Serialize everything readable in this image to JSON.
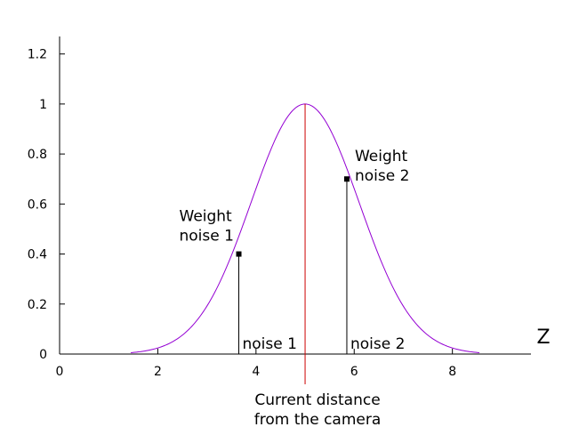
{
  "chart_data": {
    "type": "line",
    "xlim": [
      0,
      9.6
    ],
    "ylim": [
      0,
      1.27
    ],
    "xticks": [
      0,
      2,
      4,
      6,
      8
    ],
    "yticks": [
      0,
      0.2,
      0.4,
      0.6,
      0.8,
      1,
      1.2
    ],
    "xtick_labels": [
      "0",
      "2",
      "4",
      "6",
      "8"
    ],
    "ytick_labels": [
      "0",
      "0.2",
      "0.4",
      "0.6",
      "0.8",
      "1",
      "1.2"
    ],
    "xlabel": "Z",
    "ylabel": "",
    "grid": false,
    "curve": {
      "kind": "gaussian",
      "mean": 5,
      "sigma": 1.1,
      "x_start": 1.45,
      "x_end": 8.55,
      "color": "#9400d3",
      "x": [
        1.45,
        2.0,
        2.5,
        3.0,
        3.5,
        4.0,
        4.5,
        5.0,
        5.5,
        6.0,
        6.5,
        7.0,
        7.5,
        8.0,
        8.55
      ],
      "y": [
        0.01,
        0.024,
        0.076,
        0.192,
        0.395,
        0.662,
        0.902,
        1.0,
        0.902,
        0.662,
        0.395,
        0.192,
        0.076,
        0.024,
        0.006
      ]
    },
    "camera_line": {
      "x": 5,
      "color": "#cc0000",
      "label": "Current distance\nfrom the camera"
    },
    "markers": [
      {
        "x": 3.65,
        "y": 0.4,
        "weight_label": "Weight\nnoise 1",
        "axis_label": "noise 1"
      },
      {
        "x": 5.85,
        "y": 0.7,
        "weight_label": "Weight\nnoise 2",
        "axis_label": "noise 2"
      }
    ]
  }
}
